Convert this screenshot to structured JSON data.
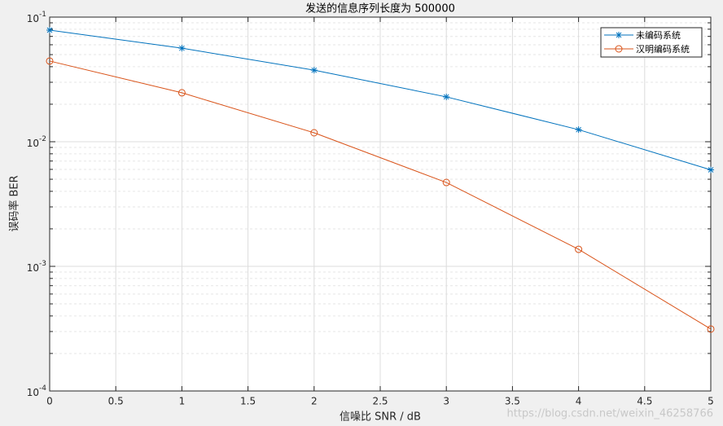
{
  "chart_data": {
    "type": "line",
    "title": "发送的信息序列长度为 500000",
    "xlabel": "信噪比 SNR / dB",
    "ylabel": "误码率 BER",
    "x": [
      0,
      1,
      2,
      3,
      4,
      5
    ],
    "series": [
      {
        "name": "未编码系统",
        "color": "#0072bd",
        "marker": "asterisk",
        "values": [
          0.0786,
          0.0563,
          0.0375,
          0.0229,
          0.0125,
          0.00595
        ]
      },
      {
        "name": "汉明编码系统",
        "color": "#d95319",
        "marker": "circle",
        "values": [
          0.0444,
          0.0247,
          0.0118,
          0.00471,
          0.00137,
          0.000314
        ]
      }
    ],
    "xlim": [
      0,
      5
    ],
    "xticks": [
      0,
      0.5,
      1,
      1.5,
      2,
      2.5,
      3,
      3.5,
      4,
      4.5,
      5
    ],
    "ylim": [
      0.0001,
      0.1
    ],
    "ylog": true,
    "yticks": [
      {
        "value": 0.0001,
        "label": "10^-4"
      },
      {
        "value": 0.001,
        "label": "10^-3"
      },
      {
        "value": 0.01,
        "label": "10^-2"
      },
      {
        "value": 0.1,
        "label": "10^-1"
      }
    ],
    "yminorticks": [
      0.0002,
      0.0003,
      0.0004,
      0.0005,
      0.0006,
      0.0007,
      0.0008,
      0.0009,
      0.002,
      0.003,
      0.004,
      0.005,
      0.006,
      0.007,
      0.008,
      0.009,
      0.02,
      0.03,
      0.04,
      0.05,
      0.06,
      0.07,
      0.08,
      0.09
    ],
    "grid": true,
    "legend": "northeast",
    "watermark": "https://blog.csdn.net/weixin_46258766"
  }
}
